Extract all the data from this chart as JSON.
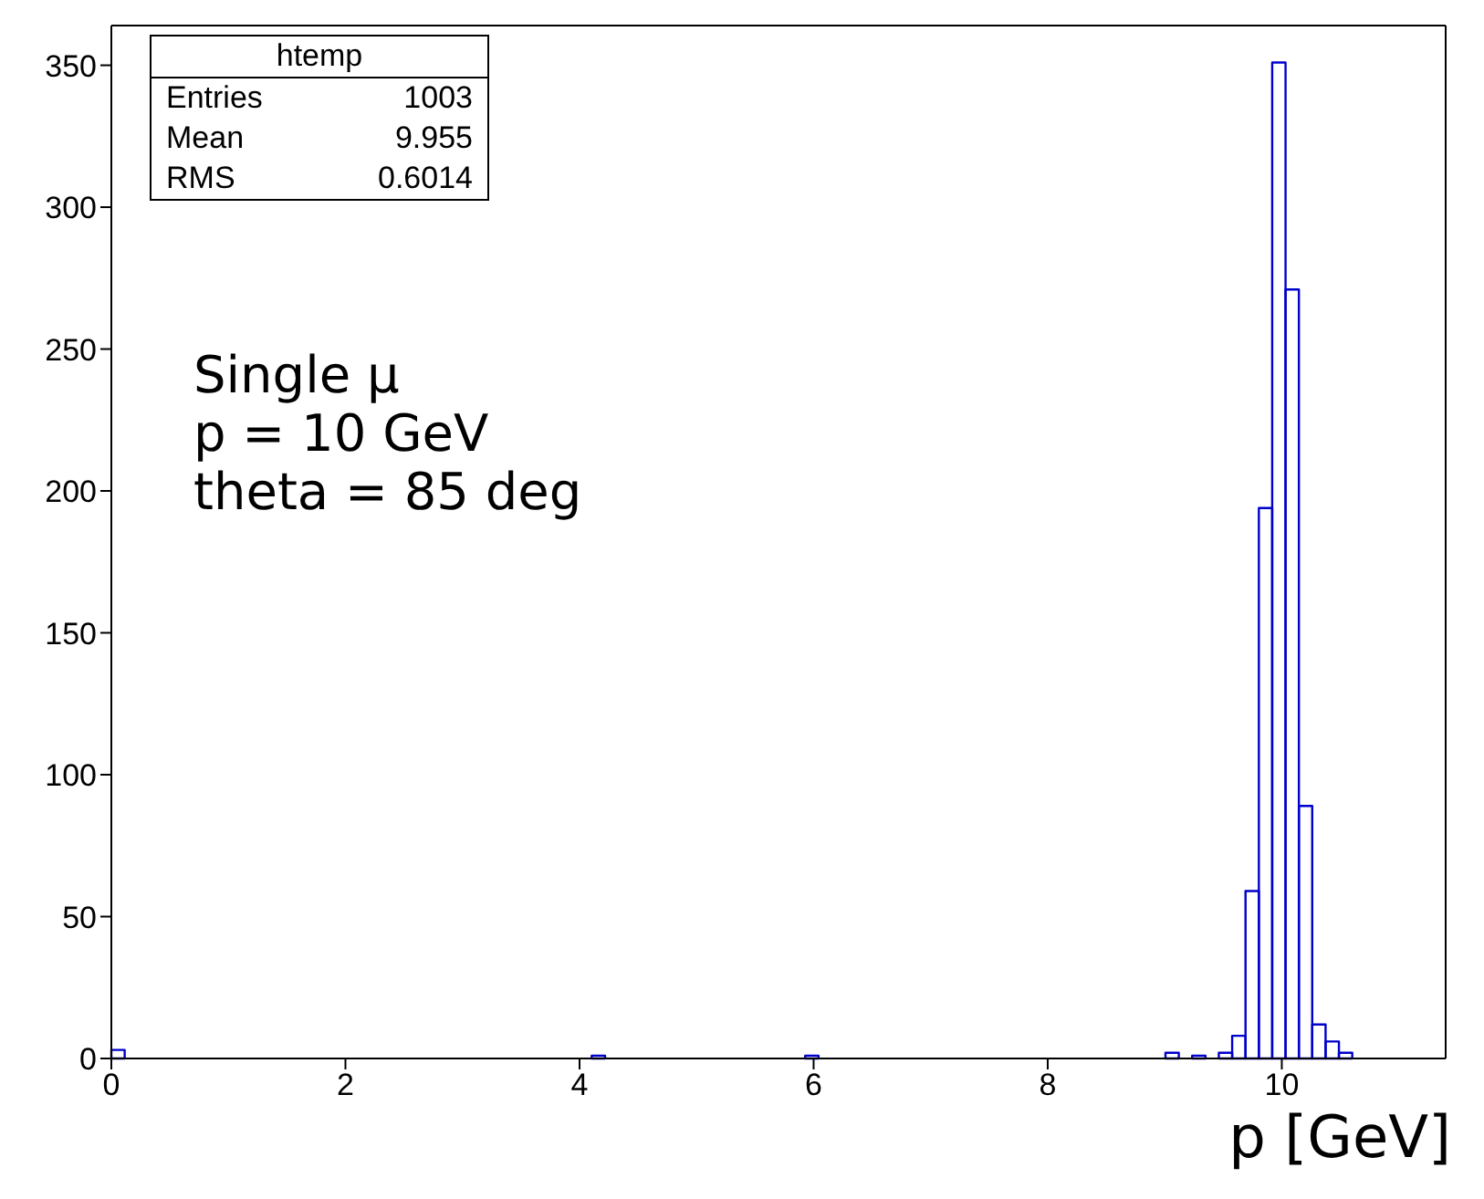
{
  "chart_data": {
    "type": "histogram",
    "xlabel": "p [GeV]",
    "bins": [
      0,
      0.114,
      0.228,
      0.342,
      0.456,
      0.57,
      0.684,
      0.798,
      0.912,
      1.026,
      1.14,
      1.254,
      1.368,
      1.482,
      1.596,
      1.71,
      1.824,
      1.938,
      2.052,
      2.166,
      2.28,
      2.394,
      2.508,
      2.622,
      2.736,
      2.85,
      2.964,
      3.078,
      3.192,
      3.306,
      3.42,
      3.534,
      3.648,
      3.762,
      3.876,
      3.99,
      4.104,
      4.218,
      4.332,
      4.446,
      4.56,
      4.674,
      4.788,
      4.902,
      5.016,
      5.13,
      5.244,
      5.358,
      5.472,
      5.586,
      5.7,
      5.814,
      5.928,
      6.042,
      6.156,
      6.27,
      6.384,
      6.498,
      6.612,
      6.726,
      6.84,
      6.954,
      7.068,
      7.182,
      7.296,
      7.41,
      7.524,
      7.638,
      7.752,
      7.866,
      7.98,
      8.094,
      8.208,
      8.322,
      8.436,
      8.55,
      8.664,
      8.778,
      8.892,
      9.006,
      9.12,
      9.234,
      9.348,
      9.462,
      9.576,
      9.69,
      9.804,
      9.918,
      10.032,
      10.146,
      10.26,
      10.374,
      10.488,
      10.602,
      10.716,
      10.83,
      10.944,
      11.058,
      11.172,
      11.286,
      11.4
    ],
    "values": [
      3,
      0,
      0,
      0,
      0,
      0,
      0,
      0,
      0,
      0,
      0,
      0,
      0,
      0,
      0,
      0,
      0,
      0,
      0,
      0,
      0,
      0,
      0,
      0,
      0,
      0,
      0,
      0,
      0,
      0,
      0,
      0,
      0,
      0,
      0,
      0,
      1,
      0,
      0,
      0,
      0,
      0,
      0,
      0,
      0,
      0,
      0,
      0,
      0,
      0,
      0,
      0,
      1,
      0,
      0,
      0,
      0,
      0,
      0,
      0,
      0,
      0,
      0,
      0,
      0,
      0,
      0,
      0,
      0,
      0,
      0,
      0,
      0,
      0,
      0,
      0,
      0,
      0,
      0,
      2,
      0,
      1,
      0,
      2,
      8,
      59,
      194,
      351,
      271,
      89,
      12,
      6,
      2,
      0,
      0,
      0,
      0,
      0,
      0,
      0
    ],
    "color": "#0000cc",
    "xlim": [
      0,
      11.4
    ],
    "xticks": [
      0,
      2,
      4,
      6,
      8,
      10
    ],
    "ylim": [
      0,
      364
    ],
    "yticks": [
      0,
      50,
      100,
      150,
      200,
      250,
      300,
      350
    ],
    "grid": false,
    "annotations": [
      "htemp",
      "Entries 1003",
      "Mean 9.955",
      "RMS 0.6014",
      "Single μ",
      "p = 10 GeV",
      "theta = 85 deg"
    ]
  }
}
